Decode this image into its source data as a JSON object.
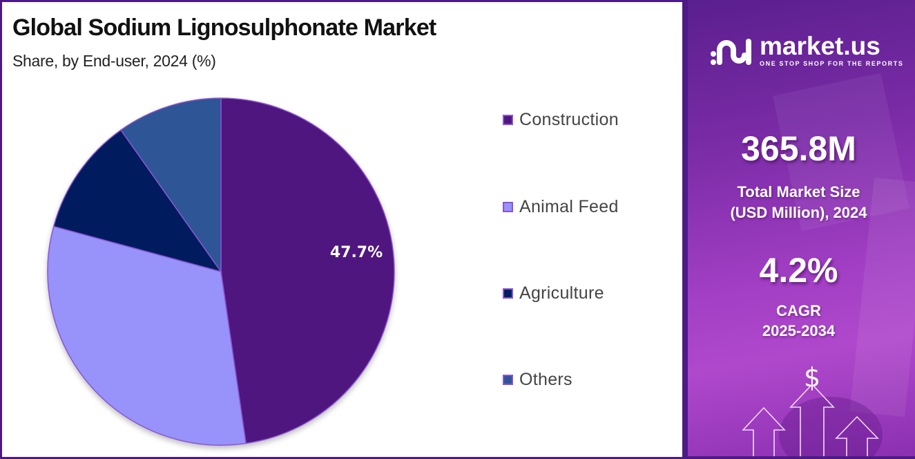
{
  "header": {
    "title": "Global Sodium Lignosulphonate Market",
    "subtitle": "Share, by End-user, 2024 (%)"
  },
  "chart_data": {
    "type": "pie",
    "title": "Global Sodium Lignosulphonate Market",
    "subtitle": "Share, by End-user, 2024 (%)",
    "categories": [
      "Construction",
      "Animal Feed",
      "Agriculture",
      "Others"
    ],
    "values": [
      47.7,
      31.5,
      11.0,
      9.8
    ],
    "colors": [
      "#4f1680",
      "#9892fb",
      "#001f5e",
      "#2f5496"
    ],
    "data_labels": [
      {
        "category": "Construction",
        "text": "47.7%"
      }
    ],
    "start_angle_deg": 0,
    "direction": "clockwise",
    "legend_position": "right"
  },
  "legend": {
    "items": [
      {
        "label": "Construction",
        "color": "#4f1680"
      },
      {
        "label": "Animal Feed",
        "color": "#9892fb"
      },
      {
        "label": "Agriculture",
        "color": "#001f5e"
      },
      {
        "label": "Others",
        "color": "#2f5496"
      }
    ]
  },
  "pie_labels": {
    "construction": "47.7%"
  },
  "sidebar": {
    "brand": {
      "name": "market.us",
      "tagline": "ONE STOP SHOP FOR THE REPORTS"
    },
    "market_size": {
      "value": "365.8M",
      "label_line1": "Total Market Size",
      "label_line2": "(USD Million), 2024"
    },
    "cagr": {
      "value": "4.2%",
      "label_line1": "CAGR",
      "label_line2": "2025-2034"
    },
    "currency_symbol": "$"
  },
  "colors": {
    "frame": "#4b1a86",
    "panel_gradient_start": "#5a1f8e",
    "panel_gradient_end": "#b048cc",
    "slice_border": "#8a55d0"
  }
}
